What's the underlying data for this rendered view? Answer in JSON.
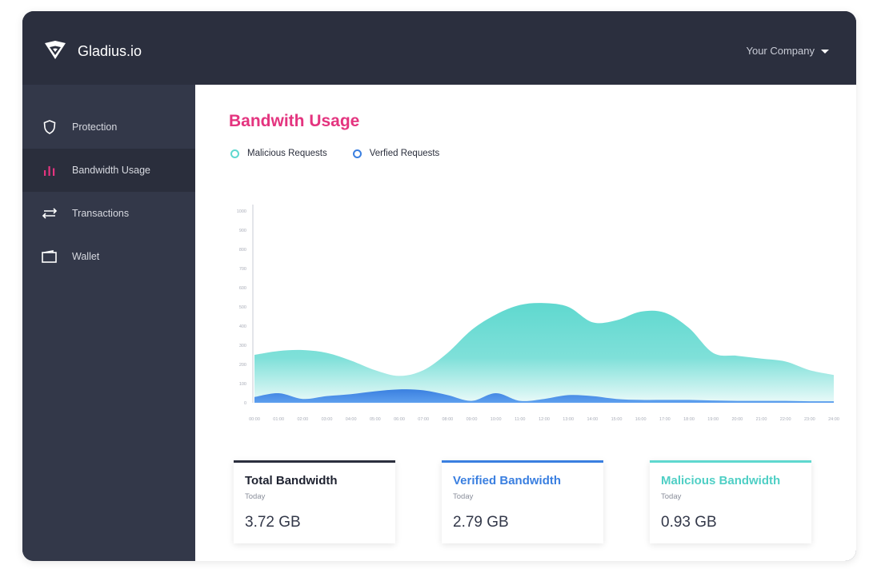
{
  "app": {
    "title": "Gladius.io"
  },
  "header": {
    "company_label": "Your Company"
  },
  "sidebar": {
    "items": [
      {
        "label": "Protection",
        "icon": "shield-icon"
      },
      {
        "label": "Bandwidth Usage",
        "icon": "bar-chart-icon"
      },
      {
        "label": "Transactions",
        "icon": "arrows-icon"
      },
      {
        "label": "Wallet",
        "icon": "wallet-icon"
      }
    ]
  },
  "main": {
    "title": "Bandwith Usage",
    "legend": [
      {
        "label": "Malicious Requests",
        "color": "#5fd8cf"
      },
      {
        "label": "Verfied Requests",
        "color": "#3a7fe0"
      }
    ],
    "cards": [
      {
        "title": "Total Bandwidth",
        "subtitle": "Today",
        "value": "3.72 GB",
        "accent": "#2b2f3e"
      },
      {
        "title": "Verified Bandwidth",
        "subtitle": "Today",
        "value": "2.79 GB",
        "accent": "#3a7fe0"
      },
      {
        "title": "Malicious Bandwidth",
        "subtitle": "Today",
        "value": "0.93 GB",
        "accent": "#5fd8cf"
      }
    ]
  },
  "colors": {
    "accent_pink": "#e4347f",
    "sidebar_bg": "#333849",
    "topbar_bg": "#2b2f3e"
  },
  "chart_data": {
    "type": "area",
    "y_ticks": [
      "0",
      "100",
      "200",
      "300",
      "400",
      "500",
      "600",
      "700",
      "800",
      "900",
      "1000"
    ],
    "ylim": [
      0,
      1000
    ],
    "x": [
      "00:00",
      "01:00",
      "02:00",
      "03:00",
      "04:00",
      "05:00",
      "06:00",
      "07:00",
      "08:00",
      "09:00",
      "10:00",
      "11:00",
      "12:00",
      "13:00",
      "14:00",
      "15:00",
      "16:00",
      "17:00",
      "18:00",
      "19:00",
      "20:00",
      "21:00",
      "22:00",
      "23:00",
      "24:00"
    ],
    "series": [
      {
        "name": "Malicious Requests",
        "values": [
          250,
          270,
          275,
          260,
          220,
          170,
          140,
          170,
          260,
          380,
          460,
          510,
          520,
          500,
          420,
          430,
          475,
          470,
          390,
          260,
          245,
          230,
          215,
          170,
          145
        ]
      },
      {
        "name": "Verfied Requests",
        "values": [
          30,
          50,
          20,
          35,
          45,
          60,
          70,
          65,
          40,
          10,
          50,
          10,
          20,
          40,
          35,
          20,
          15,
          15,
          15,
          12,
          10,
          10,
          10,
          8,
          8
        ]
      }
    ],
    "grid": false,
    "legend_position": "top-left"
  }
}
